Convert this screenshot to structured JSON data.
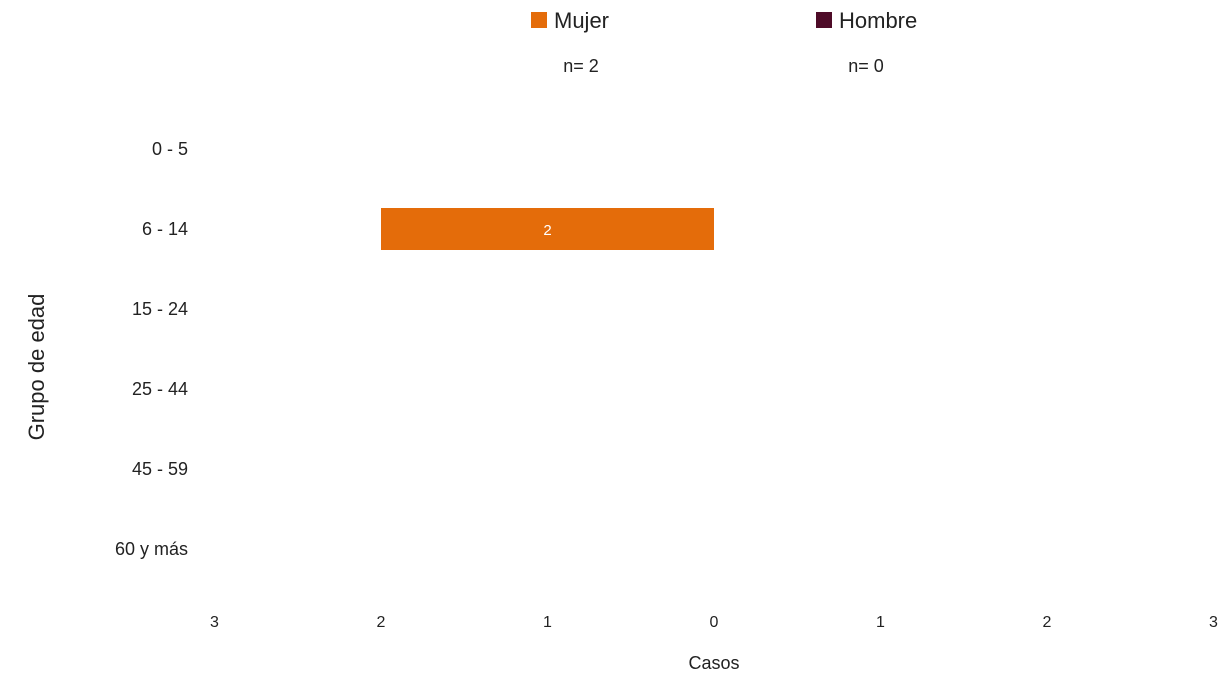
{
  "chart_data": {
    "type": "bar",
    "orientation": "horizontal-pyramid",
    "ylabel": "Grupo de edad",
    "xlabel": "Casos",
    "categories": [
      "0 - 5",
      "6 - 14",
      "15 - 24",
      "25 - 44",
      "45 - 59",
      "60 y más"
    ],
    "x_ticks": [
      3,
      2,
      1,
      0,
      1,
      2,
      3
    ],
    "xlim": [
      -3,
      3
    ],
    "grid": false,
    "legend_position": "top",
    "series": [
      {
        "name": "Mujer",
        "side": "left",
        "color": "#E46C0A",
        "count_label": "n= 2",
        "values": [
          0,
          2,
          0,
          0,
          0,
          0
        ]
      },
      {
        "name": "Hombre",
        "side": "right",
        "color": "#4E0B28",
        "count_label": "n= 0",
        "values": [
          0,
          0,
          0,
          0,
          0,
          0
        ]
      }
    ]
  }
}
